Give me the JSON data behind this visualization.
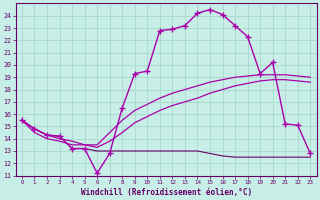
{
  "xlabel": "Windchill (Refroidissement éolien,°C)",
  "bg_color": "#c8eee8",
  "grid_color": "#aad8cc",
  "line_color": "#aa00aa",
  "line_color2": "#660066",
  "hours": [
    0,
    1,
    2,
    3,
    4,
    5,
    6,
    7,
    8,
    9,
    10,
    11,
    12,
    13,
    14,
    15,
    16,
    17,
    18,
    19,
    20,
    21,
    22,
    23
  ],
  "windchill": [
    15.5,
    14.8,
    14.3,
    14.2,
    13.2,
    13.2,
    11.2,
    12.8,
    16.5,
    19.3,
    19.5,
    22.8,
    22.9,
    23.2,
    24.2,
    24.5,
    24.1,
    23.2,
    22.3,
    19.3,
    20.2,
    15.2,
    15.1,
    12.8
  ],
  "trend1": [
    15.5,
    14.5,
    14.0,
    13.8,
    13.5,
    13.5,
    13.5,
    14.5,
    15.5,
    16.3,
    16.8,
    17.3,
    17.7,
    18.0,
    18.3,
    18.6,
    18.8,
    19.0,
    19.1,
    19.2,
    19.2,
    19.2,
    19.1,
    19.0
  ],
  "trend2": [
    15.5,
    14.8,
    14.3,
    14.0,
    13.8,
    13.5,
    13.3,
    13.8,
    14.5,
    15.3,
    15.8,
    16.3,
    16.7,
    17.0,
    17.3,
    17.7,
    18.0,
    18.3,
    18.5,
    18.7,
    18.8,
    18.8,
    18.7,
    18.6
  ],
  "dewpoint": [
    15.5,
    14.8,
    14.3,
    14.2,
    13.2,
    13.2,
    13.0,
    13.0,
    13.0,
    13.0,
    13.0,
    13.0,
    13.0,
    13.0,
    13.0,
    12.8,
    12.6,
    12.5,
    12.5,
    12.5,
    12.5,
    12.5,
    12.5,
    12.5
  ],
  "ylim": [
    11,
    25
  ],
  "yticks": [
    11,
    12,
    13,
    14,
    15,
    16,
    17,
    18,
    19,
    20,
    21,
    22,
    23,
    24
  ],
  "xticks": [
    0,
    1,
    2,
    3,
    4,
    5,
    6,
    7,
    8,
    9,
    10,
    11,
    12,
    13,
    14,
    15,
    16,
    17,
    18,
    19,
    20,
    21,
    22,
    23
  ]
}
